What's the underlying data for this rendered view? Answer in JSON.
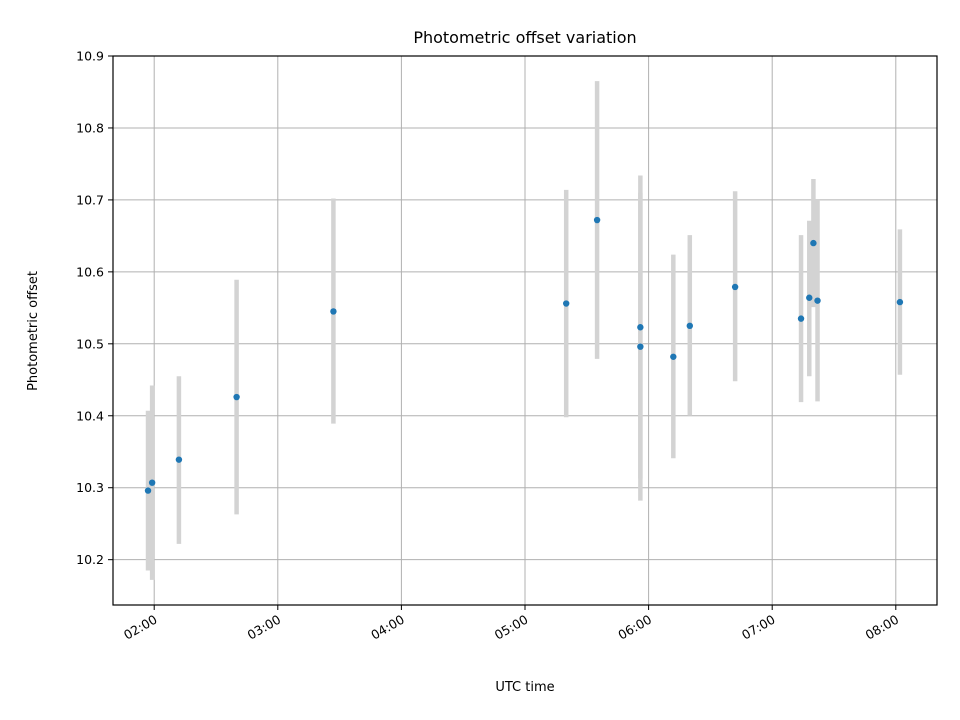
{
  "chart_data": {
    "type": "scatter",
    "title": "Photometric offset variation",
    "xlabel": "UTC time",
    "ylabel": "Photometric offset",
    "x_unit": "UTC time (HH:MM)",
    "xlim": [
      "01:40",
      "08:20"
    ],
    "ylim": [
      10.137,
      10.9
    ],
    "x_ticks": [
      "02:00",
      "03:00",
      "04:00",
      "05:00",
      "06:00",
      "07:00",
      "08:00"
    ],
    "y_ticks": [
      10.2,
      10.3,
      10.4,
      10.5,
      10.6,
      10.7,
      10.8,
      10.9
    ],
    "y_tick_labels": [
      "10.2",
      "10.3",
      "10.4",
      "10.5",
      "10.6",
      "10.7",
      "10.8",
      "10.9"
    ],
    "grid": true,
    "colors": {
      "points": "#1f77b4",
      "error_bars": "#d3d3d3",
      "grid": "#b0b0b0"
    },
    "series": [
      {
        "points": [
          {
            "x": "01:57",
            "y": 10.296,
            "ymin": 10.185,
            "ymax": 10.407
          },
          {
            "x": "01:59",
            "y": 10.307,
            "ymin": 10.172,
            "ymax": 10.442
          },
          {
            "x": "02:12",
            "y": 10.339,
            "ymin": 10.222,
            "ymax": 10.455
          },
          {
            "x": "02:40",
            "y": 10.426,
            "ymin": 10.263,
            "ymax": 10.589
          },
          {
            "x": "03:27",
            "y": 10.545,
            "ymin": 10.389,
            "ymax": 10.702
          },
          {
            "x": "05:20",
            "y": 10.556,
            "ymin": 10.398,
            "ymax": 10.714
          },
          {
            "x": "05:35",
            "y": 10.672,
            "ymin": 10.479,
            "ymax": 10.865
          },
          {
            "x": "05:56",
            "y": 10.523,
            "ymin": 10.313,
            "ymax": 10.734
          },
          {
            "x": "05:56",
            "y": 10.496,
            "ymin": 10.282,
            "ymax": 10.71
          },
          {
            "x": "06:12",
            "y": 10.482,
            "ymin": 10.341,
            "ymax": 10.624
          },
          {
            "x": "06:20",
            "y": 10.525,
            "ymin": 10.4,
            "ymax": 10.651
          },
          {
            "x": "06:42",
            "y": 10.579,
            "ymin": 10.448,
            "ymax": 10.712
          },
          {
            "x": "07:14",
            "y": 10.535,
            "ymin": 10.419,
            "ymax": 10.651
          },
          {
            "x": "07:18",
            "y": 10.564,
            "ymin": 10.455,
            "ymax": 10.671
          },
          {
            "x": "07:20",
            "y": 10.64,
            "ymin": 10.551,
            "ymax": 10.729
          },
          {
            "x": "07:22",
            "y": 10.56,
            "ymin": 10.42,
            "ymax": 10.7
          },
          {
            "x": "08:02",
            "y": 10.558,
            "ymin": 10.457,
            "ymax": 10.659
          }
        ]
      }
    ]
  }
}
